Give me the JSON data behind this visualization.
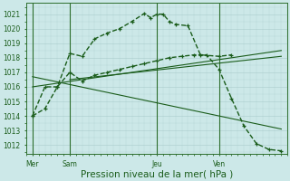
{
  "bg_color": "#cce8e8",
  "grid_color": "#aacccc",
  "line_color": "#1a5c1a",
  "vline_color": "#2d6e2d",
  "title": "Pression niveau de la mer( hPa )",
  "title_fontsize": 7.5,
  "tick_fontsize": 5.5,
  "ylim": [
    1011.4,
    1021.8
  ],
  "yticks": [
    1012,
    1013,
    1014,
    1015,
    1016,
    1017,
    1018,
    1019,
    1020,
    1021
  ],
  "xlim": [
    0,
    21
  ],
  "day_labels": [
    "Mer",
    "Sam",
    "Jeu",
    "Ven"
  ],
  "day_positions": [
    0.5,
    3.5,
    10.5,
    15.5
  ],
  "vline_positions": [
    0.5,
    3.5,
    10.5,
    15.5
  ],
  "curve1_x": [
    0.5,
    1.5,
    2.5,
    3.5,
    4.5,
    5.5,
    6.5,
    7.5,
    8.5,
    9.5,
    10.0,
    10.5,
    11.0,
    11.5,
    12.0,
    13.0,
    14.0,
    15.5,
    16.5
  ],
  "curve1_y": [
    1014.0,
    1016.0,
    1016.0,
    1018.3,
    1018.1,
    1019.3,
    1019.7,
    1020.0,
    1020.5,
    1021.05,
    1020.75,
    1021.0,
    1021.0,
    1020.5,
    1020.3,
    1020.2,
    1018.2,
    1018.1,
    1018.2
  ],
  "curve2_x": [
    0.5,
    1.5,
    2.5,
    3.5,
    4.5,
    5.5,
    6.5,
    7.5,
    8.5,
    9.5,
    10.5,
    11.5,
    12.5,
    13.5,
    14.5,
    15.5,
    16.5,
    17.5,
    18.5,
    19.5,
    20.5
  ],
  "curve2_y": [
    1014.0,
    1014.5,
    1016.0,
    1017.0,
    1016.4,
    1016.8,
    1017.0,
    1017.2,
    1017.4,
    1017.6,
    1017.8,
    1018.0,
    1018.1,
    1018.2,
    1018.2,
    1017.2,
    1015.2,
    1013.3,
    1012.1,
    1011.7,
    1011.6
  ],
  "trend1_x": [
    0.5,
    20.5
  ],
  "trend1_y": [
    1016.0,
    1018.5
  ],
  "trend2_x": [
    3.5,
    20.5
  ],
  "trend2_y": [
    1016.5,
    1018.1
  ],
  "trend3_x": [
    0.5,
    20.5
  ],
  "trend3_y": [
    1016.7,
    1013.1
  ]
}
